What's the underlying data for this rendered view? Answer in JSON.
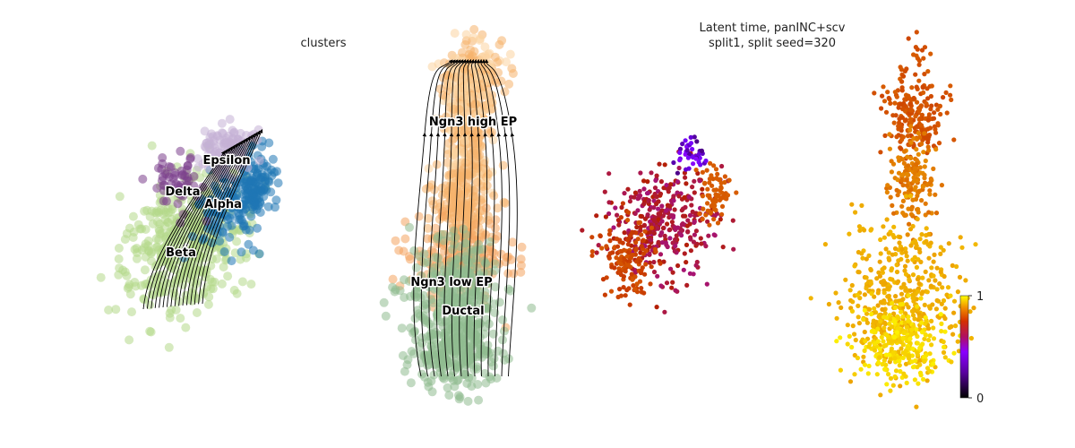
{
  "chart_data": [
    {
      "type": "scatter",
      "plot": "umap-embedding-with-velocity-streamlines",
      "title": "clusters",
      "legend": "on data",
      "grid": false,
      "axes": false,
      "clusters": [
        {
          "name": "Ngn3 high EP",
          "color": "#f6b26b",
          "colors_alt": "#fbd3a1"
        },
        {
          "name": "Ngn3 low EP",
          "color": "#f4a460"
        },
        {
          "name": "Ductal",
          "color": "#8fbc8f"
        },
        {
          "name": "Epsilon",
          "color": "#c5b0d5"
        },
        {
          "name": "Delta",
          "color": "#7b3f8c"
        },
        {
          "name": "Alpha",
          "color": "#1f77b4"
        },
        {
          "name": "Beta",
          "color": "#b5d98a"
        }
      ],
      "streamlines": true,
      "streamline_color": "#000000"
    },
    {
      "type": "scatter",
      "plot": "umap-embedding-colored-by-latent-time",
      "title_line1": "Latent time, panINC+scv",
      "title_line2": "split1, split seed=320",
      "grid": false,
      "axes": false,
      "colormap": "gnuplot",
      "colorbar": {
        "min": 0,
        "max": 1,
        "tick_labels": [
          "0",
          "1"
        ],
        "position": "right"
      }
    }
  ]
}
